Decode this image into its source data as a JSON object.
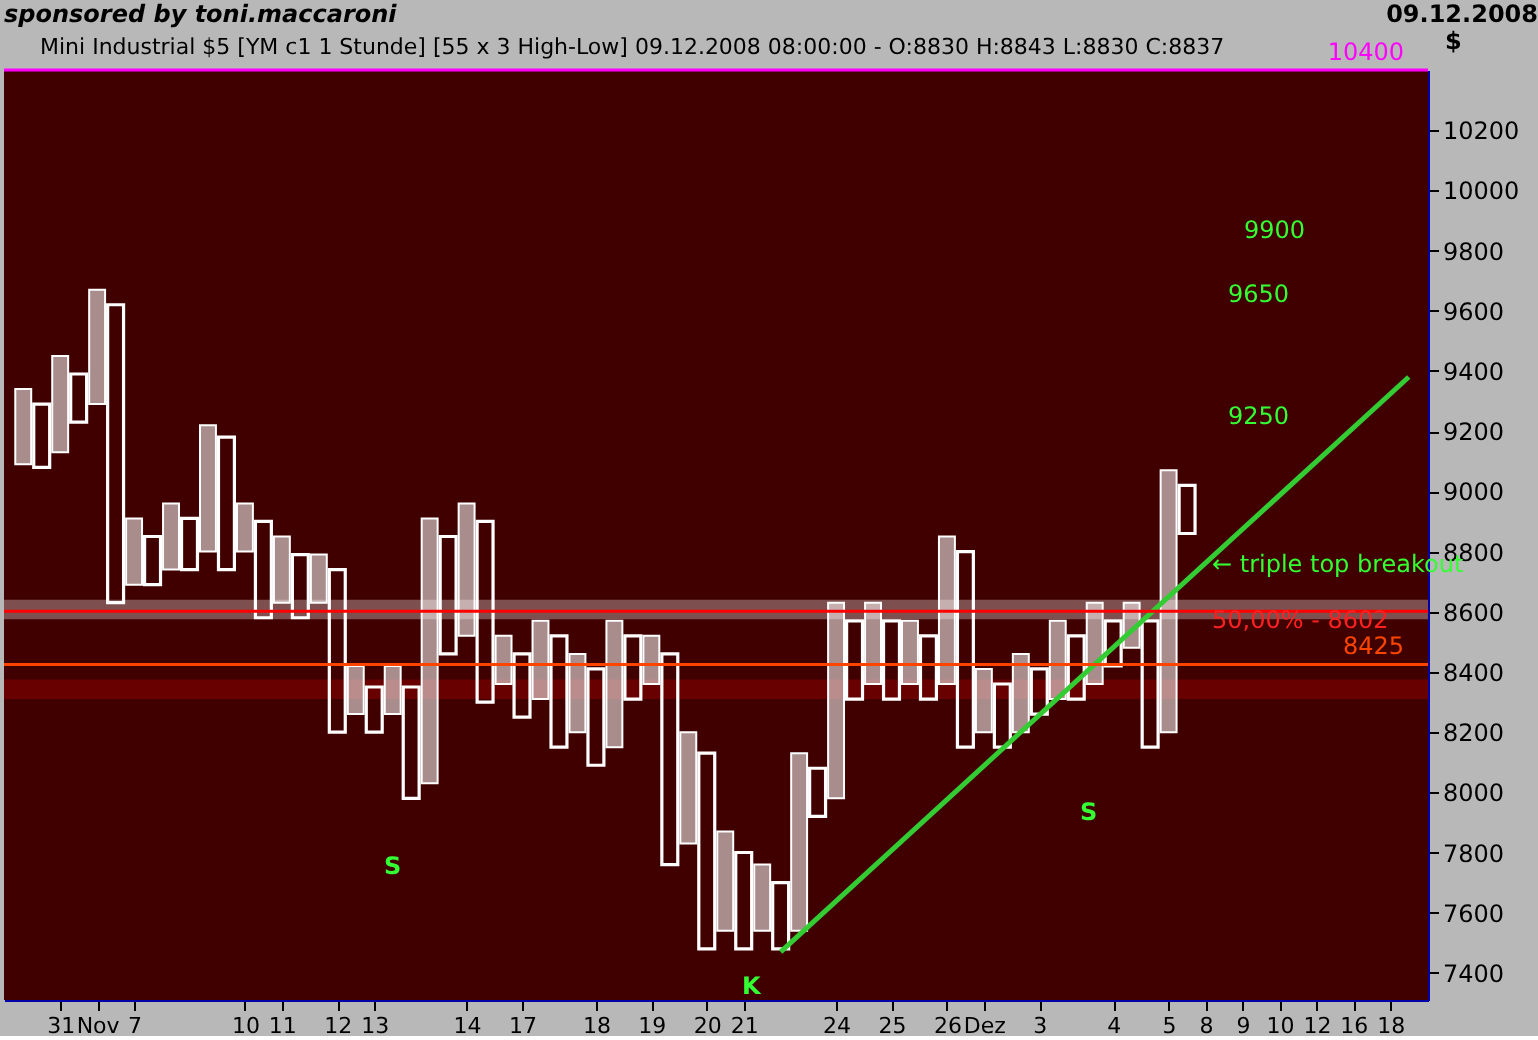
{
  "chart_data": {
    "type": "bar",
    "title": "Mini Industrial $5 [YM c1 1 Stunde] [55 x 3 High-Low] 09.12.2008 08:00:00 - O:8830 H:8843 L:8830 C:8837",
    "ylabel": "$",
    "annotations": [
      "sponsored by toni.maccaroni",
      "09.12.2008",
      "S",
      "S",
      "K",
      "← triple top breakout",
      "50,00% - 8602",
      "9250",
      "9650",
      "9900"
    ],
    "categories": [
      null,
      null,
      "31",
      null,
      "Nov",
      null,
      "7",
      null,
      null,
      null,
      null,
      null,
      "10",
      null,
      "11",
      null,
      null,
      "12",
      null,
      "13",
      null,
      null,
      null,
      null,
      "14",
      null,
      null,
      "17",
      null,
      null,
      null,
      "18",
      null,
      null,
      "19",
      null,
      null,
      "20",
      null,
      "21",
      null,
      null,
      null,
      null,
      "24",
      null,
      null,
      "25",
      null,
      null,
      "26",
      null,
      "Dez",
      null,
      null,
      "3",
      null,
      null,
      null,
      "4",
      null,
      null,
      "5",
      null,
      "8",
      null,
      "9",
      null,
      "10",
      null,
      "12",
      null,
      "16",
      null,
      "18",
      null
    ],
    "series": [
      {
        "marker": "cross",
        "color": "#ffffff",
        "base": [
          9090,
          null,
          9130,
          null,
          9290,
          null,
          8690,
          null,
          8740,
          null,
          8800,
          null,
          8800,
          null,
          8630,
          null,
          8630,
          null,
          8260,
          null,
          8260,
          null,
          8030,
          null,
          8520,
          null,
          8360,
          null,
          8310,
          null,
          8200,
          null,
          8150,
          null,
          8360,
          null,
          7830,
          null,
          7540,
          null,
          7540,
          null,
          7540,
          null,
          7980,
          null,
          8360,
          null,
          8360,
          null,
          8360,
          null,
          8200,
          null,
          8200,
          null,
          8310,
          null,
          8360,
          null,
          8480,
          null,
          8200,
          null,
          null,
          null,
          null,
          null,
          null,
          null,
          null,
          null,
          null,
          null,
          null,
          null
        ],
        "values": [
          250,
          null,
          320,
          null,
          380,
          null,
          220,
          null,
          220,
          null,
          420,
          null,
          160,
          null,
          220,
          null,
          160,
          null,
          160,
          null,
          160,
          null,
          880,
          null,
          440,
          null,
          160,
          null,
          260,
          null,
          260,
          null,
          420,
          null,
          160,
          null,
          370,
          null,
          330,
          null,
          220,
          null,
          590,
          null,
          650,
          null,
          270,
          null,
          210,
          null,
          490,
          null,
          210,
          null,
          260,
          null,
          260,
          null,
          270,
          null,
          150,
          null,
          870,
          null,
          null,
          null,
          null,
          null,
          null,
          null,
          null,
          null,
          null,
          null,
          null,
          null
        ]
      },
      {
        "marker": "circle",
        "color": "#ffffff",
        "base": [
          null,
          9080,
          null,
          9230,
          null,
          8630,
          null,
          8690,
          null,
          8740,
          null,
          8740,
          null,
          8580,
          null,
          8580,
          null,
          8200,
          null,
          8200,
          null,
          7980,
          null,
          8460,
          null,
          8300,
          null,
          8250,
          null,
          8150,
          null,
          8090,
          null,
          8310,
          null,
          7760,
          null,
          7480,
          null,
          7480,
          null,
          7480,
          null,
          7920,
          null,
          8310,
          null,
          8310,
          null,
          8310,
          null,
          8150,
          null,
          8150,
          null,
          8260,
          null,
          8310,
          null,
          8420,
          null,
          8150,
          null,
          8860,
          null,
          null,
          null,
          null,
          null,
          null,
          null,
          null,
          null,
          null,
          null,
          null
        ],
        "values": [
          null,
          210,
          null,
          160,
          null,
          990,
          null,
          160,
          null,
          170,
          null,
          440,
          null,
          320,
          null,
          210,
          null,
          540,
          null,
          150,
          null,
          370,
          null,
          390,
          null,
          600,
          null,
          210,
          null,
          370,
          null,
          320,
          null,
          210,
          null,
          700,
          null,
          650,
          null,
          320,
          null,
          220,
          null,
          160,
          null,
          260,
          null,
          260,
          null,
          210,
          null,
          650,
          null,
          210,
          null,
          150,
          null,
          210,
          null,
          150,
          null,
          420,
          null,
          160,
          null,
          null,
          null,
          null,
          null,
          null,
          null,
          null,
          null,
          null,
          null,
          null
        ]
      },
      {
        "type": "line",
        "color": "#33cc33",
        "values": [
          null,
          null,
          null,
          null,
          null,
          null,
          null,
          null,
          null,
          null,
          null,
          null,
          null,
          null,
          null,
          null,
          null,
          null,
          null,
          null,
          null,
          null,
          null,
          null,
          null,
          null,
          null,
          null,
          null,
          null,
          null,
          null,
          null,
          null,
          null,
          null,
          null,
          null,
          null,
          null,
          null,
          7470,
          null,
          null,
          null,
          null,
          null,
          null,
          null,
          null,
          null,
          null,
          null,
          null,
          null,
          null,
          null,
          null,
          null,
          null,
          null,
          null,
          null,
          null,
          null,
          null,
          null,
          null,
          null,
          null,
          null,
          null,
          null,
          null,
          null,
          9380
        ]
      }
    ],
    "ref_lines": [
      {
        "axis": "y",
        "value": 10400,
        "label": "10400",
        "color": "#ff00ff"
      },
      {
        "axis": "y",
        "value": 8425,
        "label": "8425",
        "color": "#ff4400"
      },
      {
        "axis": "y",
        "value": 8602,
        "color": "#ff0000"
      }
    ],
    "bands": [
      {
        "axis": "y",
        "from": 8575,
        "to": 8640,
        "color": "#b09090"
      },
      {
        "axis": "y",
        "from": 8310,
        "to": 8375,
        "color": "#8a0000"
      }
    ],
    "ylim": [
      7310,
      10400
    ],
    "yticks": [
      7400,
      7600,
      7800,
      8000,
      8200,
      8400,
      8600,
      8800,
      9000,
      9200,
      9400,
      9600,
      9800,
      10000,
      10200
    ],
    "grid": false
  }
}
